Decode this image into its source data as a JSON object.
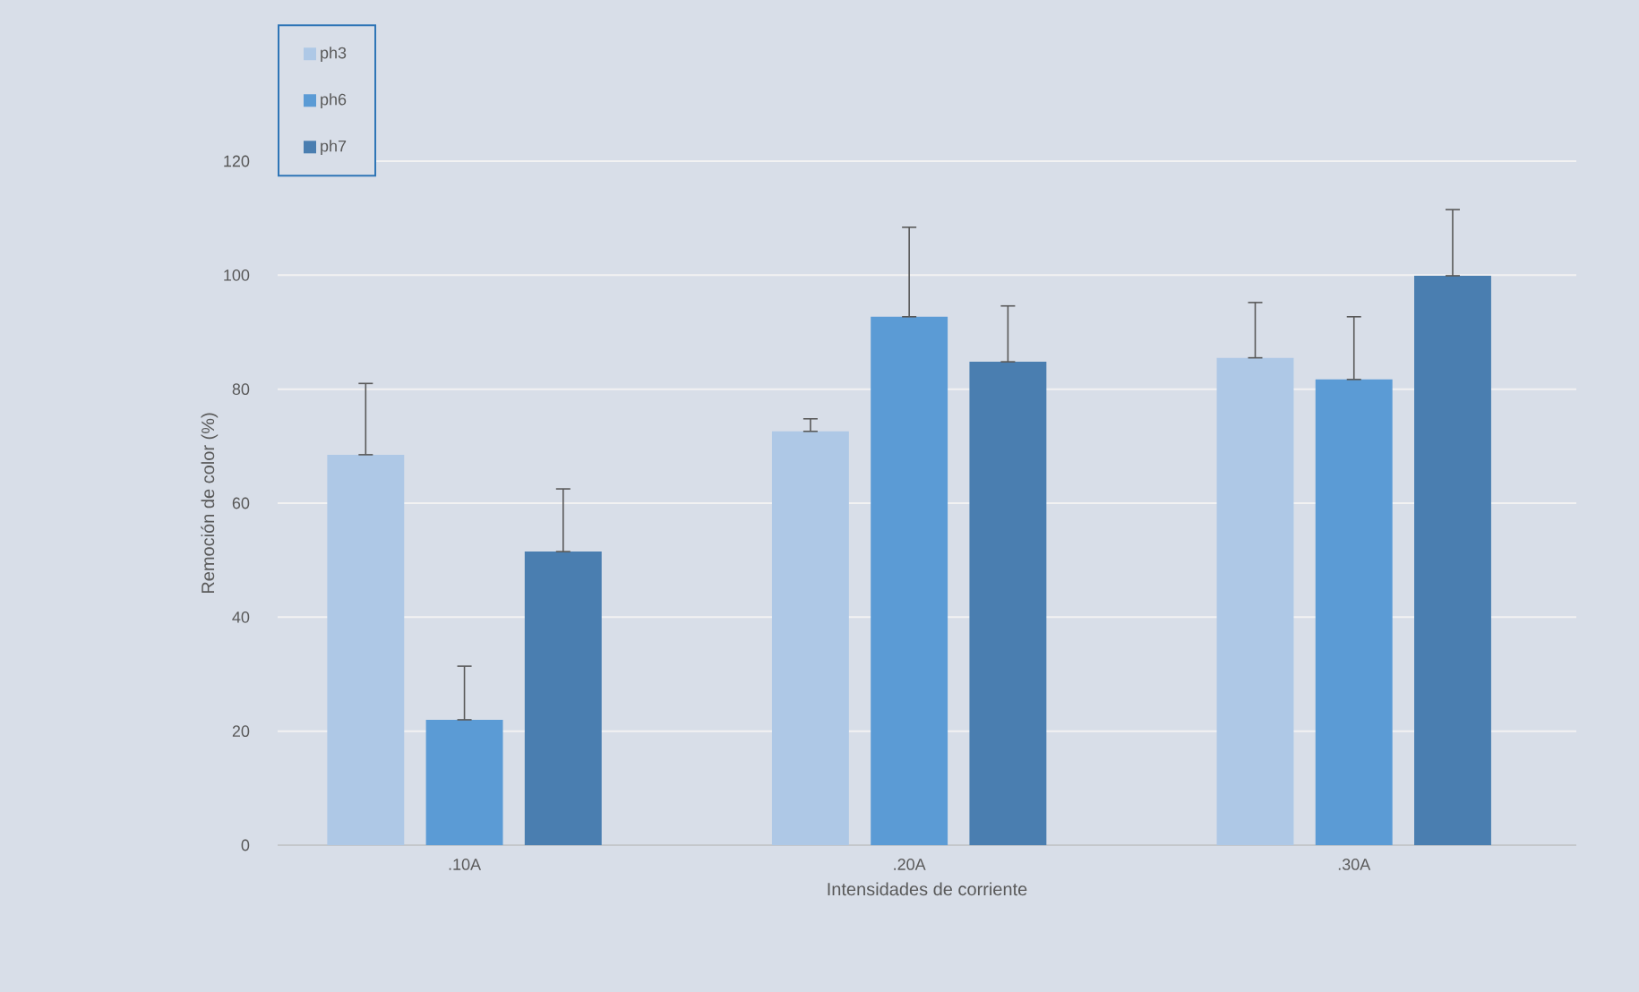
{
  "chart_data": {
    "type": "bar",
    "xlabel": "Intensidades de corriente",
    "ylabel": "Remoción de color (%)",
    "categories": [
      ".10A",
      ".20A",
      ".30A"
    ],
    "series": [
      {
        "name": "ph3",
        "color": "#aec8e6",
        "values": [
          68.5,
          72.6,
          85.5
        ],
        "errors": [
          [
            68.5,
            81
          ],
          [
            72.6,
            74.8
          ],
          [
            85.5,
            95.2
          ]
        ]
      },
      {
        "name": "ph6",
        "color": "#5b9bd5",
        "values": [
          22,
          92.7,
          81.7
        ],
        "errors": [
          [
            22,
            31.4
          ],
          [
            92.7,
            108.4
          ],
          [
            81.7,
            92.7
          ]
        ]
      },
      {
        "name": "ph7",
        "color": "#4a7eb0",
        "values": [
          51.5,
          84.8,
          99.9
        ],
        "errors": [
          [
            51.5,
            62.5
          ],
          [
            84.8,
            94.6
          ],
          [
            99.9,
            111.5
          ]
        ]
      }
    ],
    "ylim": [
      0,
      120
    ],
    "yticks": [
      0,
      20,
      40,
      60,
      80,
      100,
      120
    ],
    "grid": "y",
    "legend": "top left"
  }
}
